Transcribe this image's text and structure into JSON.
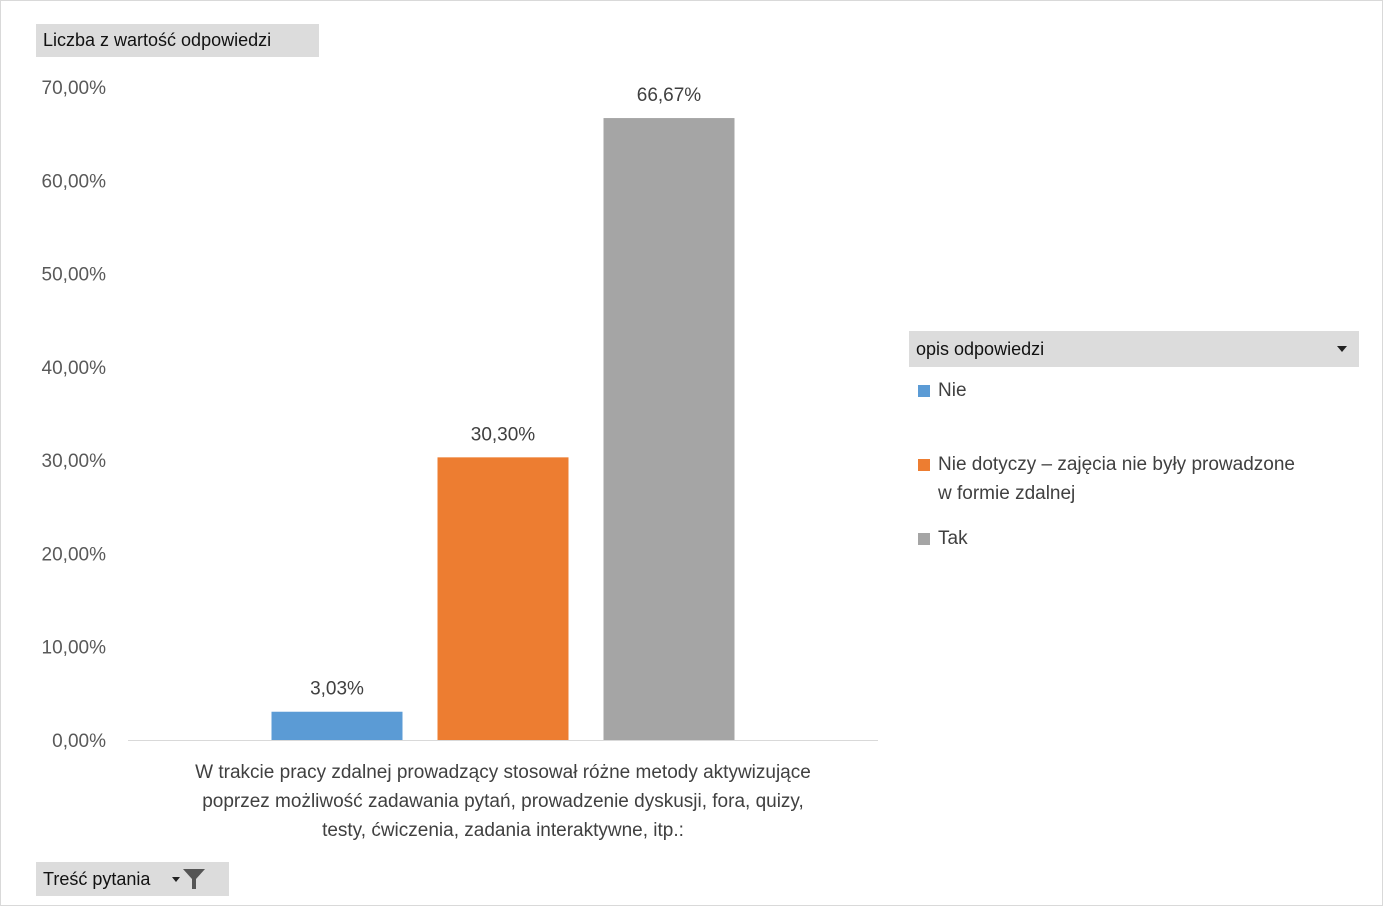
{
  "fields": {
    "value_field": "Liczba z wartość odpowiedzi",
    "legend_field": "opis odpowiedzi",
    "category_field": "Treść pytania"
  },
  "chart_data": {
    "type": "bar",
    "categories": [
      "W trakcie pracy zdalnej prowadzący stosował różne metody aktywizujące poprzez możliwość zadawania pytań, prowadzenie dyskusji, fora, quizy, testy, ćwiczenia, zadania interaktywne, itp.:"
    ],
    "category_lines": [
      "W trakcie pracy zdalnej prowadzący stosował różne metody aktywizujące",
      "poprzez możliwość zadawania pytań, prowadzenie dyskusji, fora, quizy,",
      "testy, ćwiczenia, zadania interaktywne, itp.:"
    ],
    "series": [
      {
        "name": "Nie",
        "values": [
          3.03
        ],
        "label": "3,03%",
        "color": "#5b9bd5"
      },
      {
        "name": "Nie dotyczy – zajęcia nie były prowadzone w formie zdalnej",
        "values": [
          30.3
        ],
        "label": "30,30%",
        "color": "#ed7d31"
      },
      {
        "name": "Tak",
        "values": [
          66.67
        ],
        "label": "66,67%",
        "color": "#a5a5a5"
      }
    ],
    "legend_lines": [
      [
        "Nie"
      ],
      [
        "Nie dotyczy – zajęcia nie były prowadzone",
        "w formie zdalnej"
      ],
      [
        "Tak"
      ]
    ],
    "yticks": [
      "0,00%",
      "10,00%",
      "20,00%",
      "30,00%",
      "40,00%",
      "50,00%",
      "60,00%",
      "70,00%"
    ],
    "ylim": [
      0,
      70
    ],
    "grid": false,
    "legend_position": "right"
  }
}
